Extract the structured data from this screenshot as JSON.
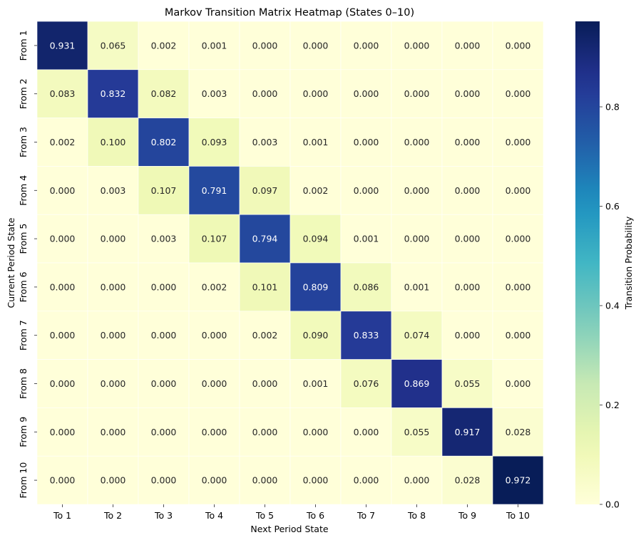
{
  "chart_data": {
    "type": "heatmap",
    "title": "Markov Transition Matrix Heatmap (States 0–10)",
    "xlabel": "Next Period State",
    "ylabel": "Current Period State",
    "x_categories": [
      "To 1",
      "To 2",
      "To 3",
      "To 4",
      "To 5",
      "To 6",
      "To 7",
      "To 8",
      "To 9",
      "To 10"
    ],
    "y_categories": [
      "From 1",
      "From 2",
      "From 3",
      "From 4",
      "From 5",
      "From 6",
      "From 7",
      "From 8",
      "From 9",
      "From 10"
    ],
    "values": [
      [
        0.931,
        0.065,
        0.002,
        0.001,
        0.0,
        0.0,
        0.0,
        0.0,
        0.0,
        0.0
      ],
      [
        0.083,
        0.832,
        0.082,
        0.003,
        0.0,
        0.0,
        0.0,
        0.0,
        0.0,
        0.0
      ],
      [
        0.002,
        0.1,
        0.802,
        0.093,
        0.003,
        0.001,
        0.0,
        0.0,
        0.0,
        0.0
      ],
      [
        0.0,
        0.003,
        0.107,
        0.791,
        0.097,
        0.002,
        0.0,
        0.0,
        0.0,
        0.0
      ],
      [
        0.0,
        0.0,
        0.003,
        0.107,
        0.794,
        0.094,
        0.001,
        0.0,
        0.0,
        0.0
      ],
      [
        0.0,
        0.0,
        0.0,
        0.002,
        0.101,
        0.809,
        0.086,
        0.001,
        0.0,
        0.0
      ],
      [
        0.0,
        0.0,
        0.0,
        0.0,
        0.002,
        0.09,
        0.833,
        0.074,
        0.0,
        0.0
      ],
      [
        0.0,
        0.0,
        0.0,
        0.0,
        0.0,
        0.001,
        0.076,
        0.869,
        0.055,
        0.0
      ],
      [
        0.0,
        0.0,
        0.0,
        0.0,
        0.0,
        0.0,
        0.0,
        0.055,
        0.917,
        0.028
      ],
      [
        0.0,
        0.0,
        0.0,
        0.0,
        0.0,
        0.0,
        0.0,
        0.0,
        0.028,
        0.972
      ]
    ],
    "colorbar": {
      "label": "Transition Probability",
      "range": [
        0,
        0.972
      ],
      "ticks": [
        0.0,
        0.2,
        0.4,
        0.6,
        0.8
      ],
      "tick_labels": [
        "0.0",
        "0.2",
        "0.4",
        "0.6",
        "0.8"
      ],
      "colormap": "YlGnBu"
    },
    "value_format": "3 decimals",
    "grid": false
  }
}
